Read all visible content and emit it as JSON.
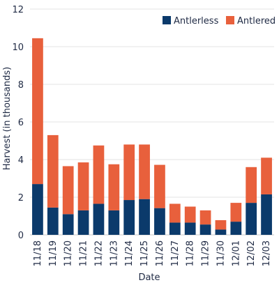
{
  "chart_data": {
    "type": "bar",
    "stacked": true,
    "title": "",
    "xlabel": "Date",
    "ylabel": "Harvest  (in thousands)",
    "ylim": [
      0,
      12
    ],
    "yticks": [
      0,
      2,
      4,
      6,
      8,
      10,
      12
    ],
    "grid": true,
    "legend_position": "top-right",
    "categories": [
      "11/18",
      "11/19",
      "11/20",
      "11/21",
      "11/22",
      "11/23",
      "11/24",
      "11/25",
      "11/26",
      "11/27",
      "11/28",
      "11/29",
      "11/30",
      "12/01",
      "12/02",
      "12/03"
    ],
    "series": [
      {
        "name": "Antlerless",
        "color": "#0b3a6b",
        "values": [
          2.7,
          1.45,
          1.1,
          1.3,
          1.65,
          1.3,
          1.85,
          1.9,
          1.42,
          0.65,
          0.65,
          0.55,
          0.28,
          0.7,
          1.7,
          2.15
        ]
      },
      {
        "name": "Antlered",
        "color": "#e8603c",
        "values": [
          7.75,
          3.85,
          2.55,
          2.55,
          3.1,
          2.45,
          2.95,
          2.9,
          2.3,
          1.0,
          0.85,
          0.75,
          0.5,
          1.0,
          1.9,
          1.95
        ]
      }
    ]
  }
}
